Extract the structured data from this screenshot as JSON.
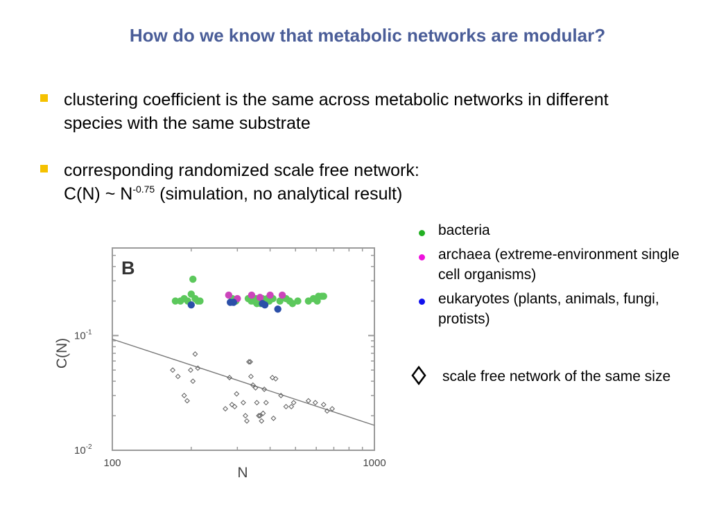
{
  "slide": {
    "title": "How do we know that metabolic networks are modular?",
    "bullets": [
      {
        "text": "clustering coefficient is the same across metabolic networks in different species with the same substrate"
      },
      {
        "line1": "corresponding randomized scale free network:",
        "prefix": "C(N) ~ N",
        "exponent": "-0.75",
        "suffix": " (simulation, no analytical result)"
      }
    ],
    "bullet_color": "#f5c100",
    "title_color": "#4a5d98"
  },
  "legend": {
    "items": [
      {
        "label": "bacteria",
        "color": "#2ca02c",
        "icon": "green-dot"
      },
      {
        "label": "archaea (extreme-environment single cell organisms)",
        "color": "#e020c0",
        "icon": "magenta-dot"
      },
      {
        "label": "eukaryotes (plants, animals, fungi, protists)",
        "color": "#1010d0",
        "icon": "blue-dot"
      }
    ],
    "scale_free_label": "scale free network of the same size",
    "scale_free_icon": "diamond-outline-icon"
  },
  "chart_data": {
    "type": "scatter",
    "panel_label": "B",
    "xlabel": "N",
    "ylabel": "C(N)",
    "xscale": "log",
    "yscale": "log",
    "xlim": [
      100,
      1000
    ],
    "ylim": [
      0.01,
      0.58
    ],
    "x_ticks": [
      {
        "value": 100,
        "label": "100"
      },
      {
        "value": 1000,
        "label": "1000"
      }
    ],
    "y_ticks": [
      {
        "value": 0.01,
        "label": "10",
        "exp": "-2"
      },
      {
        "value": 0.1,
        "label": "10",
        "exp": "-1"
      }
    ],
    "colors": {
      "bacteria": "#5cc85c",
      "archaea": "#cc44bb",
      "eukaryotes": "#2b4fa8",
      "scale_free": "#666666",
      "fit": "#777777"
    },
    "series": [
      {
        "name": "bacteria",
        "marker": "filled-circle",
        "points": [
          [
            174,
            0.2
          ],
          [
            182,
            0.2
          ],
          [
            188,
            0.21
          ],
          [
            194,
            0.2
          ],
          [
            200,
            0.23
          ],
          [
            203,
            0.31
          ],
          [
            207,
            0.21
          ],
          [
            212,
            0.2
          ],
          [
            216,
            0.2
          ],
          [
            287,
            0.21
          ],
          [
            296,
            0.2
          ],
          [
            330,
            0.21
          ],
          [
            339,
            0.2
          ],
          [
            346,
            0.2
          ],
          [
            353,
            0.21
          ],
          [
            356,
            0.19
          ],
          [
            360,
            0.2
          ],
          [
            364,
            0.2
          ],
          [
            368,
            0.19
          ],
          [
            374,
            0.21
          ],
          [
            380,
            0.2
          ],
          [
            390,
            0.21
          ],
          [
            397,
            0.2
          ],
          [
            410,
            0.21
          ],
          [
            436,
            0.2
          ],
          [
            460,
            0.21
          ],
          [
            475,
            0.2
          ],
          [
            487,
            0.19
          ],
          [
            510,
            0.2
          ],
          [
            560,
            0.2
          ],
          [
            585,
            0.21
          ],
          [
            605,
            0.2
          ],
          [
            612,
            0.22
          ],
          [
            630,
            0.22
          ],
          [
            640,
            0.22
          ]
        ]
      },
      {
        "name": "archaea",
        "marker": "filled-circle",
        "points": [
          [
            278,
            0.225
          ],
          [
            300,
            0.21
          ],
          [
            340,
            0.225
          ],
          [
            366,
            0.215
          ],
          [
            400,
            0.225
          ],
          [
            445,
            0.225
          ]
        ]
      },
      {
        "name": "eukaryotes",
        "marker": "filled-circle",
        "points": [
          [
            200,
            0.185
          ],
          [
            282,
            0.195
          ],
          [
            290,
            0.195
          ],
          [
            374,
            0.19
          ],
          [
            382,
            0.185
          ],
          [
            428,
            0.17
          ]
        ]
      },
      {
        "name": "scale free",
        "marker": "open-diamond",
        "points": [
          [
            170,
            0.05
          ],
          [
            178,
            0.044
          ],
          [
            188,
            0.03
          ],
          [
            193,
            0.027
          ],
          [
            199,
            0.05
          ],
          [
            203,
            0.04
          ],
          [
            207,
            0.069
          ],
          [
            212,
            0.052
          ],
          [
            280,
            0.043
          ],
          [
            270,
            0.023
          ],
          [
            286,
            0.025
          ],
          [
            298,
            0.031
          ],
          [
            293,
            0.024
          ],
          [
            316,
            0.026
          ],
          [
            322,
            0.02
          ],
          [
            326,
            0.018
          ],
          [
            332,
            0.059
          ],
          [
            336,
            0.059
          ],
          [
            338,
            0.044
          ],
          [
            344,
            0.037
          ],
          [
            352,
            0.035
          ],
          [
            356,
            0.026
          ],
          [
            362,
            0.02
          ],
          [
            366,
            0.02
          ],
          [
            371,
            0.018
          ],
          [
            376,
            0.021
          ],
          [
            380,
            0.034
          ],
          [
            386,
            0.026
          ],
          [
            408,
            0.043
          ],
          [
            420,
            0.042
          ],
          [
            412,
            0.019
          ],
          [
            440,
            0.03
          ],
          [
            460,
            0.024
          ],
          [
            482,
            0.024
          ],
          [
            492,
            0.026
          ],
          [
            560,
            0.027
          ],
          [
            595,
            0.026
          ],
          [
            640,
            0.025
          ],
          [
            660,
            0.022
          ],
          [
            690,
            0.023
          ]
        ]
      }
    ],
    "fit_line": {
      "label": "C(N) ~ N^-0.75",
      "exponent": -0.75,
      "x": [
        100,
        1000
      ],
      "y": [
        0.093,
        0.0165
      ]
    }
  }
}
